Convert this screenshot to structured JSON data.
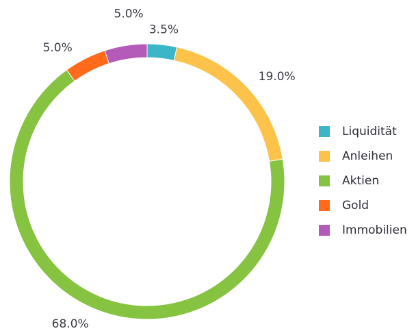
{
  "chart_data": {
    "type": "pie",
    "variant": "donut",
    "legend_position": "right",
    "slices": [
      {
        "name": "Liquidität",
        "value": 3.5,
        "label": "3.5%",
        "color": "#3bb6c9"
      },
      {
        "name": "Anleihen",
        "value": 19.0,
        "label": "19.0%",
        "color": "#fdc24a"
      },
      {
        "name": "Aktien",
        "value": 68.0,
        "label": "68.0%",
        "color": "#86c341"
      },
      {
        "name": "Gold",
        "value": 5.0,
        "label": "5.0%",
        "color": "#ff6b1a"
      },
      {
        "name": "Immobilien",
        "value": 5.0,
        "label": "5.0%",
        "color": "#b45ab8"
      }
    ]
  }
}
